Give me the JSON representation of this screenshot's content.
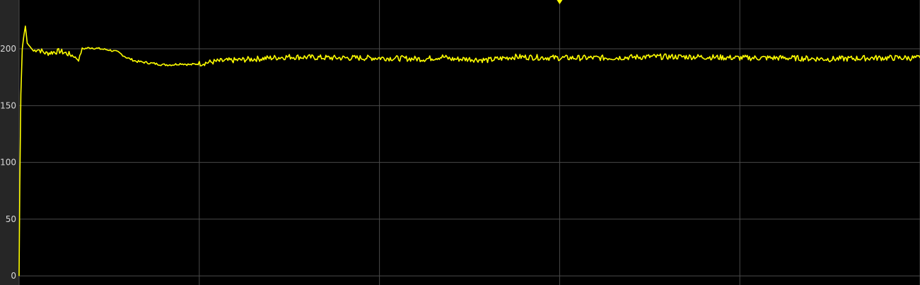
{
  "chart_data": {
    "type": "line",
    "title": "",
    "xlabel": "",
    "ylabel": "",
    "ylim": [
      -8,
      243
    ],
    "xlim": [
      0,
      100
    ],
    "yticks": [
      0,
      50,
      100,
      150,
      200
    ],
    "ytick_labels": [
      "0",
      "50",
      "100",
      "150",
      "200"
    ],
    "xgrid": [
      0,
      20,
      40,
      60,
      80,
      100
    ],
    "grid": true,
    "legend": "none",
    "colors": {
      "plot_background": "#000000",
      "figure_background": "#262626",
      "grid": "#4a4a4a",
      "line": "#ffff00",
      "tick_text": "#d9d9d9"
    },
    "trigger_marker": {
      "x": 60,
      "icon": "down-triangle-icon"
    },
    "series": [
      {
        "x": [
          0,
          0.08,
          0.2,
          0.35,
          0.5,
          0.7,
          0.9,
          1.2,
          1.6,
          2.0,
          3.0,
          4.5,
          6.0,
          6.6,
          7.0,
          8.0,
          9.0,
          10.0,
          11.0,
          12.0,
          13.0,
          14.0,
          15.0,
          16.0,
          17.0,
          18.0,
          19.0,
          20.0,
          22.0,
          24.0,
          26.0,
          28.0,
          30.0,
          35.0,
          40.0,
          45.0,
          47.0,
          48.0,
          50.0,
          52.0,
          55.0,
          60.0,
          65.0,
          70.0,
          75.0,
          80.0,
          85.0,
          90.0,
          95.0,
          100.0
        ],
        "values": [
          0,
          80,
          160,
          200,
          210,
          220,
          205,
          202,
          198,
          200,
          196,
          198,
          194,
          190,
          200,
          201,
          200,
          199,
          197,
          192,
          189,
          188,
          187,
          186,
          186,
          187,
          186,
          187,
          189,
          190,
          191,
          192,
          193,
          192,
          192,
          191,
          193,
          191,
          191,
          190,
          193,
          192,
          192,
          193,
          193,
          192,
          192,
          191,
          192,
          192
        ]
      }
    ]
  }
}
